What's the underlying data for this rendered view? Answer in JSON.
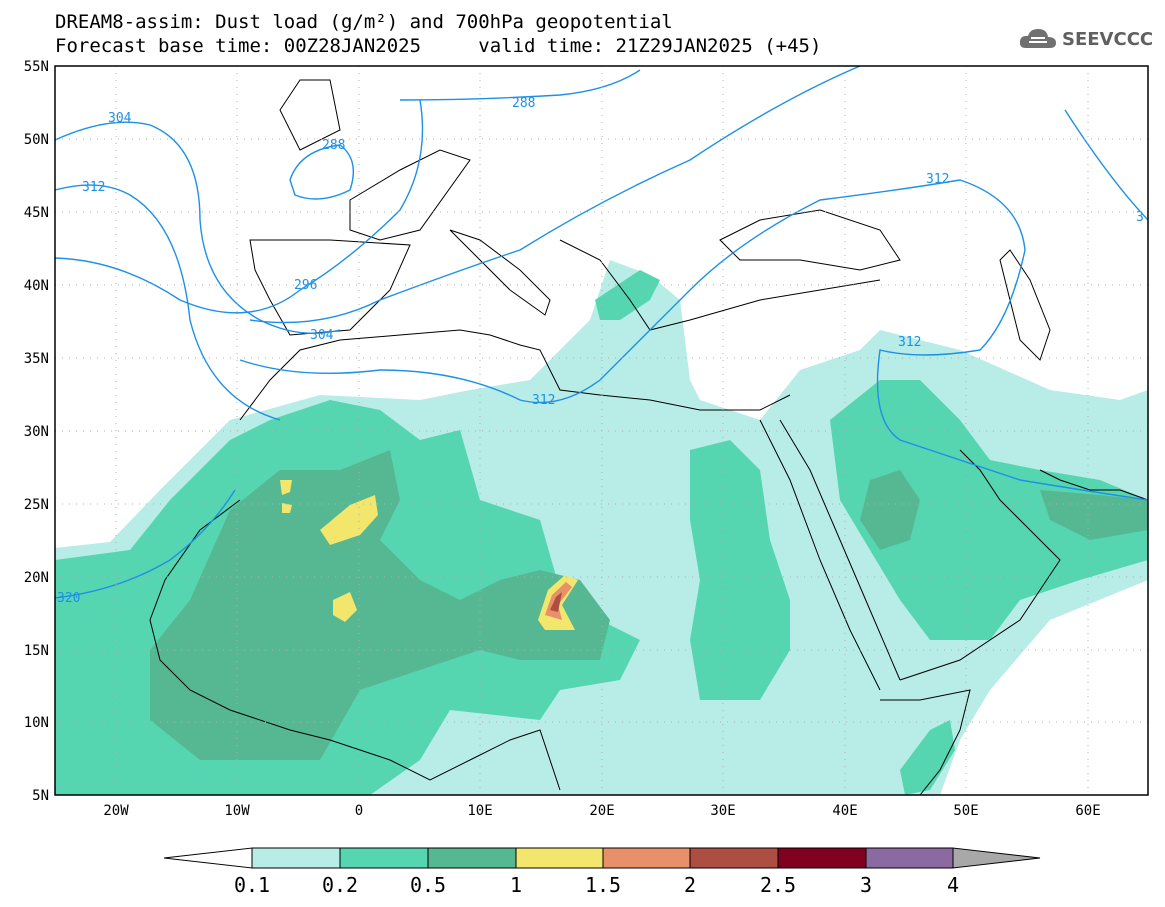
{
  "header": {
    "title_line1": "DREAM8-assim: Dust load (g/m²) and 700hPa geopotential",
    "base_time": "Forecast base time: 00Z28JAN2025",
    "valid_time": "valid time: 21Z29JAN2025 (+45)",
    "logo_text": "SEEVCCC",
    "logo_icon": "cloud-icon"
  },
  "map": {
    "projection": "lat-lon",
    "lon_range": [
      -25,
      65
    ],
    "lat_range": [
      5,
      55
    ],
    "lat_ticks": [
      "55N",
      "50N",
      "45N",
      "40N",
      "35N",
      "30N",
      "25N",
      "20N",
      "15N",
      "10N",
      "5N"
    ],
    "lon_ticks": [
      "20W",
      "10W",
      "0",
      "10E",
      "20E",
      "30E",
      "40E",
      "50E",
      "60E"
    ],
    "contour_color": "#1e90e6",
    "contour_labels": [
      "304",
      "312",
      "288",
      "288",
      "296",
      "304",
      "312",
      "312",
      "312",
      "320",
      "3"
    ]
  },
  "legend": {
    "labels": [
      "0.1",
      "0.2",
      "0.5",
      "1",
      "1.5",
      "2",
      "2.5",
      "3",
      "4"
    ],
    "colors": [
      "#ffffff",
      "#b8ece6",
      "#56d6b0",
      "#56b892",
      "#f2e66c",
      "#e8906a",
      "#ad4e42",
      "#800020",
      "#8a6aa0",
      "#a8a8a8"
    ]
  }
}
